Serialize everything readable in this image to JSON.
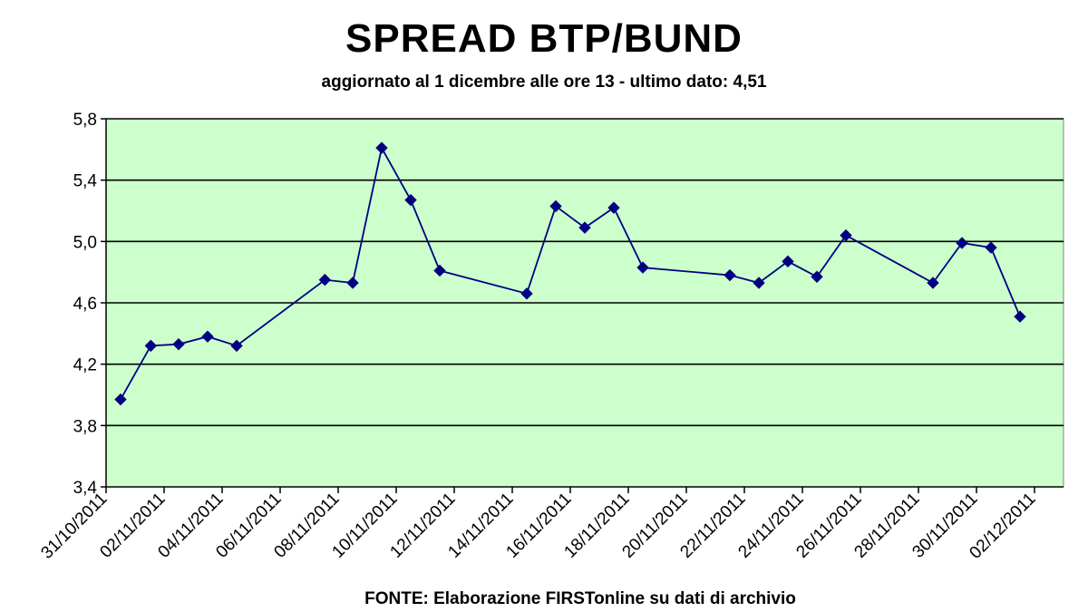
{
  "chart_data": {
    "type": "line",
    "title": "SPREAD BTP/BUND",
    "subtitle": "aggiornato al 1 dicembre alle ore 13 - ultimo dato: 4,51",
    "source": "FONTE: Elaborazione FIRSTonline su dati di archivio",
    "x_start": "31/10/2011",
    "x_end": "03/12/2011",
    "ylim": [
      3.4,
      5.8
    ],
    "yticks": [
      "3,4",
      "3,8",
      "4,2",
      "4,6",
      "5,0",
      "5,4",
      "5,8"
    ],
    "yticks_values": [
      3.4,
      3.8,
      4.2,
      4.6,
      5.0,
      5.4,
      5.8
    ],
    "xtick_labels": [
      "31/10/2011",
      "02/11/2011",
      "04/11/2011",
      "06/11/2011",
      "08/11/2011",
      "10/11/2011",
      "12/11/2011",
      "14/11/2011",
      "16/11/2011",
      "18/11/2011",
      "20/11/2011",
      "22/11/2011",
      "24/11/2011",
      "26/11/2011",
      "28/11/2011",
      "30/11/2011",
      "02/12/2011"
    ],
    "grid": true,
    "plot_background": "#ccffcc",
    "line_color": "#000080",
    "series": [
      {
        "points": [
          {
            "x": "31/10/2011 12:00",
            "y": 3.97
          },
          {
            "x": "01/11/2011 13:00",
            "y": 4.32
          },
          {
            "x": "02/11/2011 12:00",
            "y": 4.33
          },
          {
            "x": "03/11/2011 12:00",
            "y": 4.38
          },
          {
            "x": "04/11/2011 12:00",
            "y": 4.32
          },
          {
            "x": "07/11/2011 13:00",
            "y": 4.75
          },
          {
            "x": "08/11/2011 12:00",
            "y": 4.73
          },
          {
            "x": "09/11/2011 12:00",
            "y": 5.61
          },
          {
            "x": "10/11/2011 12:00",
            "y": 5.27
          },
          {
            "x": "11/11/2011 12:00",
            "y": 4.81
          },
          {
            "x": "14/11/2011 12:00",
            "y": 4.66
          },
          {
            "x": "15/11/2011 12:00",
            "y": 5.23
          },
          {
            "x": "16/11/2011 12:00",
            "y": 5.09
          },
          {
            "x": "17/11/2011 12:00",
            "y": 5.22
          },
          {
            "x": "18/11/2011 12:00",
            "y": 4.83
          },
          {
            "x": "21/11/2011 12:00",
            "y": 4.78
          },
          {
            "x": "22/11/2011 12:00",
            "y": 4.73
          },
          {
            "x": "23/11/2011 12:00",
            "y": 4.87
          },
          {
            "x": "24/11/2011 12:00",
            "y": 4.77
          },
          {
            "x": "25/11/2011 12:00",
            "y": 5.04
          },
          {
            "x": "28/11/2011 12:00",
            "y": 4.73
          },
          {
            "x": "29/11/2011 12:00",
            "y": 4.99
          },
          {
            "x": "30/11/2011 12:00",
            "y": 4.96
          },
          {
            "x": "01/12/2011 12:00",
            "y": 4.51
          }
        ]
      }
    ]
  }
}
